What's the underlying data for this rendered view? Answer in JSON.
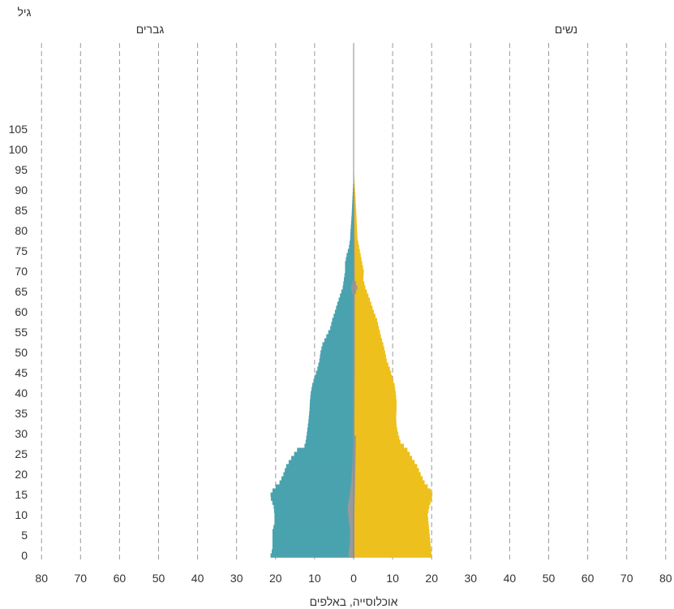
{
  "chart_data": {
    "type": "bar",
    "orientation": "horizontal-pyramid",
    "y_title": "גיל",
    "x_title": "אוכלוסייה, באלפים",
    "left_side_label": "גברים",
    "right_side_label": "נשים",
    "x_ticks": [
      "80",
      "70",
      "60",
      "50",
      "40",
      "30",
      "20",
      "10",
      "0",
      "10",
      "20",
      "30",
      "40",
      "50",
      "60",
      "70",
      "80"
    ],
    "xlim": [
      -80,
      80
    ],
    "y_ticks": [
      "0",
      "5",
      "10",
      "15",
      "20",
      "25",
      "30",
      "35",
      "40",
      "45",
      "50",
      "55",
      "60",
      "65",
      "70",
      "75",
      "80",
      "85",
      "90",
      "95",
      "100",
      "105"
    ],
    "ylim": [
      0,
      105
    ],
    "grid": "vertical dashed",
    "colors": {
      "men": "#49a3af",
      "women": "#edc01d",
      "overlay": "#9a9a9a",
      "axis_zero": "#888888",
      "grid": "#9a9a9a"
    },
    "men_keypoints": [
      [
        0,
        21.3
      ],
      [
        1,
        21.0
      ],
      [
        2,
        20.8
      ],
      [
        4,
        20.8
      ],
      [
        6,
        20.8
      ],
      [
        8,
        20.3
      ],
      [
        10,
        20.3
      ],
      [
        12,
        20.5
      ],
      [
        14,
        21.2
      ],
      [
        15,
        21.3
      ],
      [
        16,
        20.8
      ],
      [
        17,
        20.0
      ],
      [
        18,
        19.0
      ],
      [
        20,
        18.0
      ],
      [
        22,
        17.3
      ],
      [
        24,
        16.0
      ],
      [
        26,
        14.5
      ],
      [
        27,
        12.6
      ],
      [
        28,
        12.3
      ],
      [
        30,
        12.0
      ],
      [
        33,
        11.6
      ],
      [
        36,
        11.3
      ],
      [
        38,
        11.2
      ],
      [
        40,
        11.0
      ],
      [
        42,
        10.6
      ],
      [
        44,
        10.0
      ],
      [
        46,
        9.3
      ],
      [
        48,
        8.8
      ],
      [
        50,
        8.5
      ],
      [
        52,
        8.0
      ],
      [
        54,
        7.0
      ],
      [
        56,
        6.0
      ],
      [
        58,
        5.5
      ],
      [
        60,
        4.8
      ],
      [
        62,
        4.2
      ],
      [
        64,
        3.5
      ],
      [
        66,
        2.8
      ],
      [
        68,
        2.5
      ],
      [
        70,
        2.2
      ],
      [
        72,
        2.2
      ],
      [
        74,
        1.8
      ],
      [
        76,
        1.2
      ],
      [
        78,
        0.9
      ],
      [
        80,
        0.8
      ],
      [
        84,
        0.5
      ],
      [
        88,
        0.3
      ],
      [
        92,
        0.1
      ],
      [
        96,
        0.05
      ],
      [
        105,
        0
      ]
    ],
    "women_keypoints": [
      [
        0,
        20.0
      ],
      [
        2,
        19.8
      ],
      [
        4,
        19.6
      ],
      [
        6,
        19.4
      ],
      [
        8,
        19.2
      ],
      [
        10,
        19.0
      ],
      [
        12,
        19.4
      ],
      [
        14,
        20.0
      ],
      [
        15,
        20.2
      ],
      [
        16,
        19.8
      ],
      [
        17,
        19.0
      ],
      [
        18,
        18.2
      ],
      [
        20,
        17.2
      ],
      [
        22,
        16.3
      ],
      [
        24,
        15.0
      ],
      [
        26,
        13.8
      ],
      [
        28,
        12.0
      ],
      [
        30,
        11.4
      ],
      [
        32,
        11.0
      ],
      [
        34,
        10.9
      ],
      [
        36,
        11.0
      ],
      [
        38,
        11.0
      ],
      [
        40,
        10.8
      ],
      [
        42,
        10.5
      ],
      [
        44,
        9.9
      ],
      [
        46,
        9.3
      ],
      [
        48,
        8.5
      ],
      [
        50,
        8.1
      ],
      [
        52,
        7.6
      ],
      [
        54,
        7.0
      ],
      [
        56,
        6.5
      ],
      [
        58,
        6.0
      ],
      [
        60,
        5.2
      ],
      [
        62,
        4.5
      ],
      [
        64,
        3.8
      ],
      [
        66,
        3.0
      ],
      [
        68,
        2.5
      ],
      [
        70,
        2.6
      ],
      [
        72,
        2.2
      ],
      [
        74,
        1.8
      ],
      [
        76,
        1.4
      ],
      [
        78,
        1.0
      ],
      [
        80,
        0.9
      ],
      [
        84,
        0.7
      ],
      [
        88,
        0.5
      ],
      [
        92,
        0.2
      ],
      [
        96,
        0.05
      ],
      [
        105,
        0
      ]
    ],
    "men_overlay_keypoints": [
      [
        0,
        1.3
      ],
      [
        3,
        1.0
      ],
      [
        6,
        0.9
      ],
      [
        9,
        1.3
      ],
      [
        12,
        1.5
      ],
      [
        15,
        1.0
      ],
      [
        18,
        0.6
      ],
      [
        22,
        0.3
      ],
      [
        28,
        0.2
      ],
      [
        35,
        0.2
      ],
      [
        50,
        0.2
      ],
      [
        64,
        0.2
      ],
      [
        66,
        0.6
      ],
      [
        68,
        0.1
      ],
      [
        105,
        0
      ]
    ],
    "women_overlay_keypoints": [
      [
        0,
        0.2
      ],
      [
        10,
        0.2
      ],
      [
        29,
        0.6
      ],
      [
        30,
        0.2
      ],
      [
        50,
        0.3
      ],
      [
        64,
        0.3
      ],
      [
        66,
        1.0
      ],
      [
        68,
        0.3
      ],
      [
        105,
        0
      ]
    ]
  }
}
